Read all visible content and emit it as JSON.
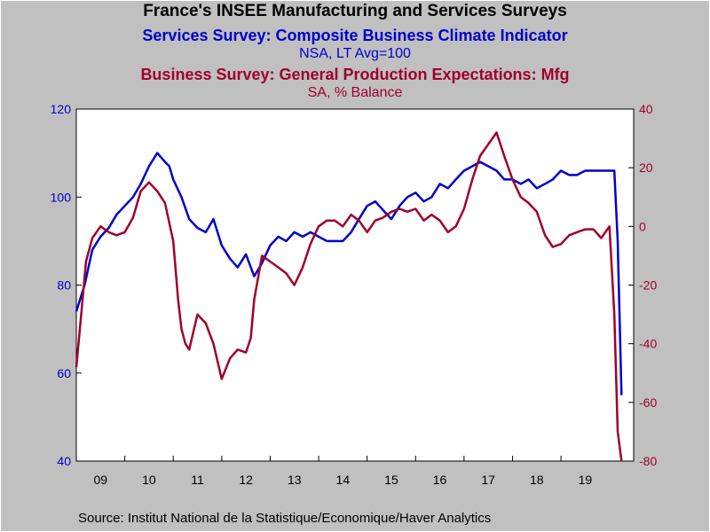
{
  "titles": {
    "main": "France's INSEE Manufacturing and Services Surveys",
    "series1_title": "Services Survey: Composite Business Climate Indicator",
    "series1_sub": "NSA, LT Avg=100",
    "series2_title": "Business Survey: General Production Expectations: Mfg",
    "series2_sub": "SA, % Balance"
  },
  "source": "Source:  Institut National de la Statistique/Economique/Haver Analytics",
  "colors": {
    "series1": "#0000cc",
    "series2": "#a0002a",
    "text": "#000000",
    "plot_bg": "#ffffff"
  },
  "chart_data": {
    "type": "line",
    "x_ticks": [
      "09",
      "10",
      "11",
      "12",
      "13",
      "14",
      "15",
      "16",
      "17",
      "18",
      "19"
    ],
    "x_range": [
      2009.0,
      2020.5
    ],
    "left_axis": {
      "ylim": [
        40,
        120
      ],
      "ticks": [
        40,
        60,
        80,
        100,
        120
      ]
    },
    "right_axis": {
      "ylim": [
        -80,
        40
      ],
      "ticks": [
        -80,
        -60,
        -40,
        -20,
        0,
        20,
        40
      ]
    },
    "grid": false,
    "series": [
      {
        "axis": "left",
        "x": [
          2009.0,
          2009.17,
          2009.33,
          2009.5,
          2009.67,
          2009.83,
          2010.0,
          2010.17,
          2010.33,
          2010.5,
          2010.67,
          2010.83,
          2010.92,
          2011.0,
          2011.17,
          2011.33,
          2011.5,
          2011.67,
          2011.83,
          2012.0,
          2012.17,
          2012.33,
          2012.5,
          2012.67,
          2012.83,
          2013.0,
          2013.17,
          2013.33,
          2013.5,
          2013.67,
          2013.83,
          2014.0,
          2014.17,
          2014.33,
          2014.5,
          2014.67,
          2014.83,
          2015.0,
          2015.17,
          2015.33,
          2015.5,
          2015.67,
          2015.83,
          2016.0,
          2016.17,
          2016.33,
          2016.5,
          2016.67,
          2016.83,
          2017.0,
          2017.17,
          2017.33,
          2017.5,
          2017.67,
          2017.83,
          2018.0,
          2018.17,
          2018.33,
          2018.5,
          2018.67,
          2018.83,
          2019.0,
          2019.17,
          2019.33,
          2019.5,
          2019.67,
          2019.83,
          2020.0,
          2020.1,
          2020.17,
          2020.25
        ],
        "values": [
          74,
          80,
          88,
          91,
          93,
          96,
          98,
          100,
          103,
          107,
          110,
          108,
          107,
          104,
          100,
          95,
          93,
          92,
          95,
          89,
          86,
          84,
          87,
          82,
          85,
          89,
          91,
          90,
          92,
          91,
          92,
          91,
          90,
          90,
          90,
          92,
          95,
          98,
          99,
          97,
          95,
          98,
          100,
          101,
          99,
          100,
          103,
          102,
          104,
          106,
          107,
          108,
          107,
          106,
          104,
          104,
          103,
          104,
          102,
          103,
          104,
          106,
          105,
          105,
          106,
          106,
          106,
          106,
          106,
          90,
          55
        ]
      },
      {
        "axis": "right",
        "x": [
          2009.0,
          2009.1,
          2009.2,
          2009.33,
          2009.5,
          2009.67,
          2009.83,
          2010.0,
          2010.17,
          2010.33,
          2010.5,
          2010.67,
          2010.83,
          2011.0,
          2011.1,
          2011.17,
          2011.25,
          2011.33,
          2011.5,
          2011.67,
          2011.83,
          2012.0,
          2012.17,
          2012.33,
          2012.5,
          2012.6,
          2012.67,
          2012.83,
          2013.0,
          2013.17,
          2013.33,
          2013.5,
          2013.67,
          2013.83,
          2014.0,
          2014.17,
          2014.33,
          2014.5,
          2014.67,
          2014.83,
          2015.0,
          2015.17,
          2015.33,
          2015.5,
          2015.67,
          2015.83,
          2016.0,
          2016.17,
          2016.33,
          2016.5,
          2016.67,
          2016.83,
          2017.0,
          2017.17,
          2017.33,
          2017.5,
          2017.67,
          2017.83,
          2018.0,
          2018.17,
          2018.33,
          2018.5,
          2018.67,
          2018.83,
          2019.0,
          2019.17,
          2019.33,
          2019.5,
          2019.67,
          2019.83,
          2020.0,
          2020.1,
          2020.17,
          2020.25
        ],
        "values": [
          -48,
          -30,
          -12,
          -4,
          0,
          -2,
          -3,
          -2,
          3,
          12,
          15,
          12,
          8,
          -5,
          -25,
          -35,
          -40,
          -42,
          -30,
          -33,
          -40,
          -52,
          -45,
          -42,
          -43,
          -38,
          -25,
          -10,
          -12,
          -14,
          -16,
          -20,
          -14,
          -6,
          0,
          2,
          2,
          0,
          4,
          2,
          -2,
          2,
          3,
          5,
          6,
          5,
          6,
          2,
          4,
          2,
          -2,
          0,
          6,
          16,
          24,
          28,
          32,
          24,
          16,
          10,
          8,
          5,
          -3,
          -7,
          -6,
          -3,
          -2,
          -1,
          -1,
          -4,
          0,
          -30,
          -70,
          -80
        ]
      }
    ]
  }
}
